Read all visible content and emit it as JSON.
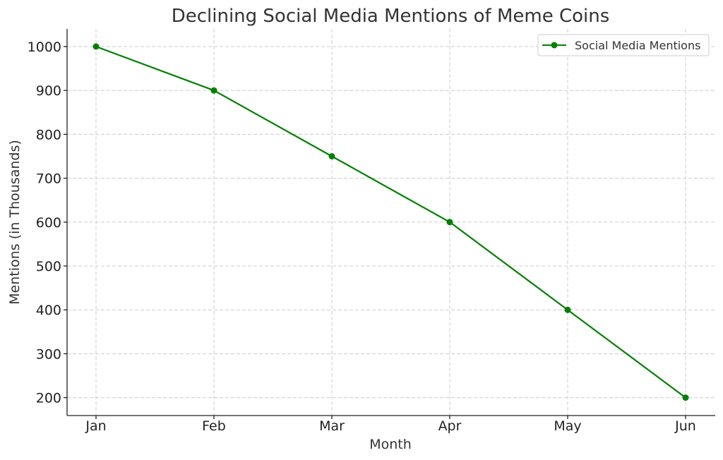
{
  "colors": {
    "series": "#008000",
    "grid": "#cccccc",
    "axis": "#222222"
  },
  "chart_data": {
    "type": "line",
    "title": "Declining Social Media Mentions of Meme Coins",
    "xlabel": "Month",
    "ylabel": "Mentions (in Thousands)",
    "categories": [
      "Jan",
      "Feb",
      "Mar",
      "Apr",
      "May",
      "Jun"
    ],
    "series": [
      {
        "name": "Social Media Mentions",
        "values": [
          1000,
          900,
          750,
          600,
          400,
          200
        ],
        "marker": "circle",
        "color": "#008000"
      }
    ],
    "yticks": [
      200,
      300,
      400,
      500,
      600,
      700,
      800,
      900,
      1000
    ],
    "ylim": [
      160,
      1040
    ],
    "grid": true,
    "legend_position": "top-right"
  }
}
